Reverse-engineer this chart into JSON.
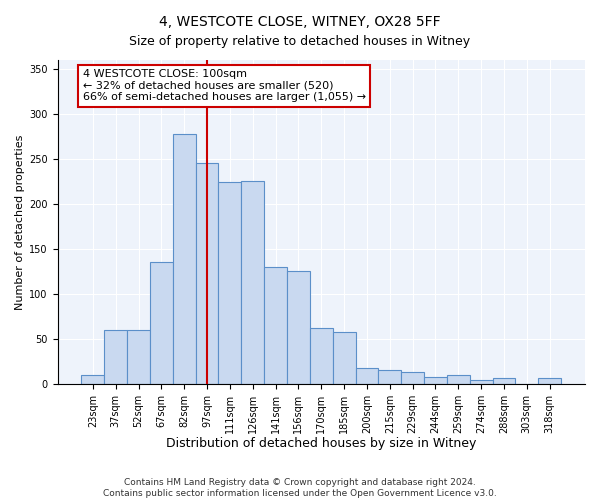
{
  "title": "4, WESTCOTE CLOSE, WITNEY, OX28 5FF",
  "subtitle": "Size of property relative to detached houses in Witney",
  "xlabel": "Distribution of detached houses by size in Witney",
  "ylabel": "Number of detached properties",
  "bar_labels": [
    "23sqm",
    "37sqm",
    "52sqm",
    "67sqm",
    "82sqm",
    "97sqm",
    "111sqm",
    "126sqm",
    "141sqm",
    "156sqm",
    "170sqm",
    "185sqm",
    "200sqm",
    "215sqm",
    "229sqm",
    "244sqm",
    "259sqm",
    "274sqm",
    "288sqm",
    "303sqm",
    "318sqm"
  ],
  "bar_heights": [
    10,
    60,
    60,
    135,
    278,
    245,
    224,
    225,
    130,
    125,
    62,
    58,
    18,
    15,
    13,
    8,
    10,
    4,
    6,
    0,
    6
  ],
  "bar_color": "#c9d9f0",
  "bar_edge_color": "#5b8fc9",
  "vline_x": 5.0,
  "vline_color": "#cc0000",
  "annotation_line1": "4 WESTCOTE CLOSE: 100sqm",
  "annotation_line2": "← 32% of detached houses are smaller (520)",
  "annotation_line3": "66% of semi-detached houses are larger (1,055) →",
  "annotation_box_color": "#ffffff",
  "annotation_box_edge_color": "#cc0000",
  "ylim": [
    0,
    360
  ],
  "yticks": [
    0,
    50,
    100,
    150,
    200,
    250,
    300,
    350
  ],
  "footer1": "Contains HM Land Registry data © Crown copyright and database right 2024.",
  "footer2": "Contains public sector information licensed under the Open Government Licence v3.0.",
  "bg_color": "#eef3fb",
  "fig_bg_color": "#ffffff",
  "title_fontsize": 10,
  "xlabel_fontsize": 9,
  "ylabel_fontsize": 8,
  "tick_fontsize": 7,
  "footer_fontsize": 6.5,
  "ann_fontsize": 8
}
